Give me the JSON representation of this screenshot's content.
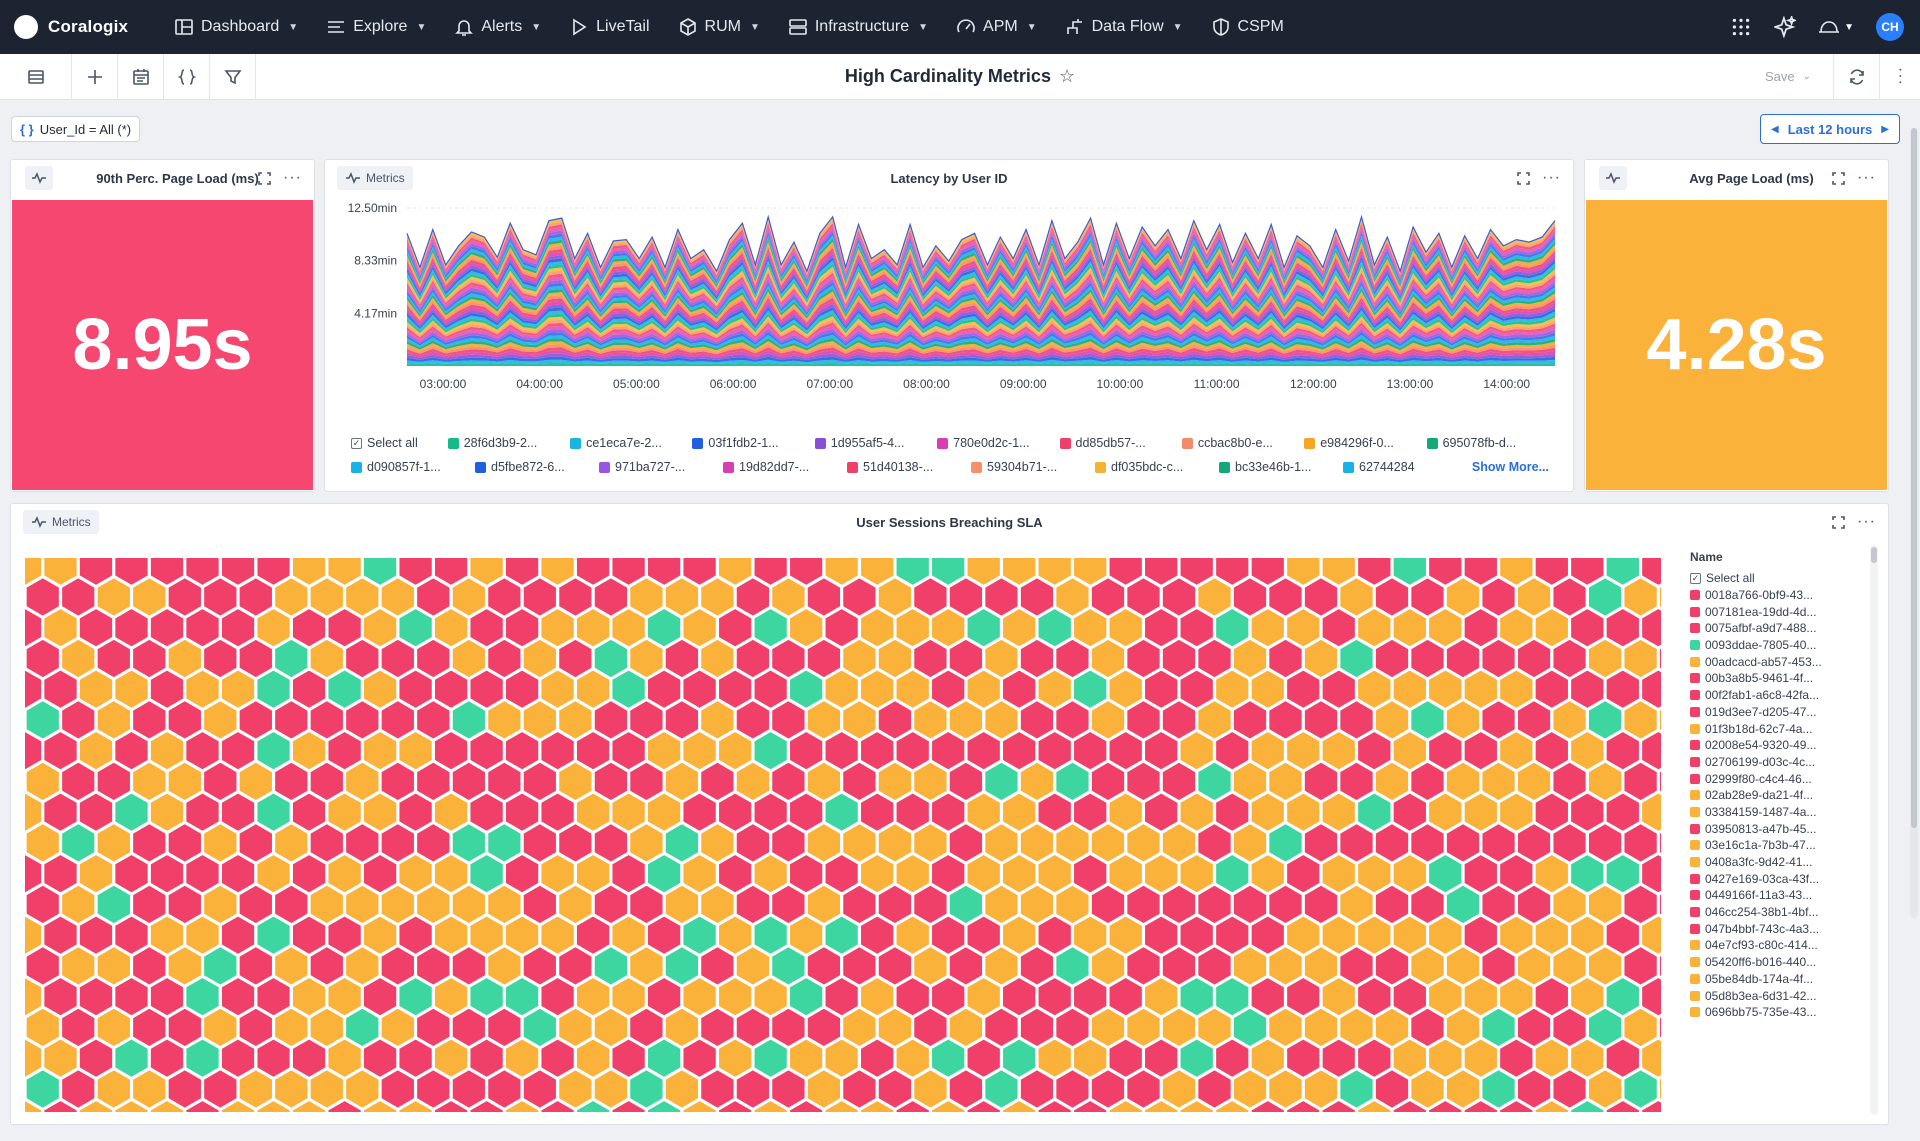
{
  "nav": {
    "brand": "Coralogix",
    "items": [
      {
        "label": "Dashboard",
        "icon": "dashboard-icon",
        "caret": true
      },
      {
        "label": "Explore",
        "icon": "explore-icon",
        "caret": true
      },
      {
        "label": "Alerts",
        "icon": "bell-icon",
        "caret": true
      },
      {
        "label": "LiveTail",
        "icon": "play-icon",
        "caret": false
      },
      {
        "label": "RUM",
        "icon": "rum-icon",
        "caret": true
      },
      {
        "label": "Infrastructure",
        "icon": "server-icon",
        "caret": true
      },
      {
        "label": "APM",
        "icon": "gauge-icon",
        "caret": true
      },
      {
        "label": "Data Flow",
        "icon": "dataflow-icon",
        "caret": true
      },
      {
        "label": "CSPM",
        "icon": "shield-icon",
        "caret": false
      }
    ],
    "avatar": "CH"
  },
  "toolbar": {
    "title": "High Cardinality Metrics",
    "save_label": "Save"
  },
  "filter": {
    "label": "User_Id = All (*)"
  },
  "time_range": {
    "label": "Last 12 hours"
  },
  "panels": {
    "p90": {
      "title": "90th Perc. Page Load (ms)",
      "value": "8.95s",
      "color": "#f5476f"
    },
    "latency": {
      "title": "Latency by User ID",
      "badge": "Metrics",
      "select_all": "Select all",
      "show_more": "Show More...",
      "legend": [
        {
          "name": "28f6d3b9-2...",
          "color": "#16b98a"
        },
        {
          "name": "ce1eca7e-2...",
          "color": "#19b5e0"
        },
        {
          "name": "03f1fdb2-1...",
          "color": "#1f5fe0"
        },
        {
          "name": "1d955af5-4...",
          "color": "#8a4fd8"
        },
        {
          "name": "780e0d2c-1...",
          "color": "#d63fb3"
        },
        {
          "name": "dd85db57-...",
          "color": "#f0406a"
        },
        {
          "name": "ccbac8b0-e...",
          "color": "#f58a6a"
        },
        {
          "name": "e984296f-0...",
          "color": "#f5a623"
        },
        {
          "name": "695078fb-d...",
          "color": "#12a878"
        },
        {
          "name": "d090857f-1...",
          "color": "#1ab0e8"
        },
        {
          "name": "d5fbe872-6...",
          "color": "#1f5fe0"
        },
        {
          "name": "971ba727-...",
          "color": "#9a55e0"
        },
        {
          "name": "19d82dd7-...",
          "color": "#d63fb3"
        },
        {
          "name": "51d40138-...",
          "color": "#f0406a"
        },
        {
          "name": "59304b71-...",
          "color": "#f5906a"
        },
        {
          "name": "df035bdc-c...",
          "color": "#f5b335"
        },
        {
          "name": "bc33e46b-1...",
          "color": "#12a878"
        },
        {
          "name": "62744284",
          "color": "#1ab0e8"
        }
      ]
    },
    "avg": {
      "title": "Avg Page Load (ms)",
      "value": "4.28s",
      "color": "#fbb23a"
    },
    "sla": {
      "title": "User Sessions Breaching SLA",
      "badge": "Metrics",
      "legend_header": "Name",
      "select_all": "Select all",
      "names": [
        {
          "name": "0018a766-0bf9-43...",
          "color": "#f0406a"
        },
        {
          "name": "007181ea-19dd-4d...",
          "color": "#f0406a"
        },
        {
          "name": "0075afbf-a9d7-488...",
          "color": "#f0406a"
        },
        {
          "name": "0093ddae-7805-40...",
          "color": "#3dd6a0"
        },
        {
          "name": "00adcacd-ab57-453...",
          "color": "#fbb23a"
        },
        {
          "name": "00b3a8b5-9461-4f...",
          "color": "#f0406a"
        },
        {
          "name": "00f2fab1-a6c8-42fa...",
          "color": "#f0406a"
        },
        {
          "name": "019d3ee7-d205-47...",
          "color": "#f0406a"
        },
        {
          "name": "01f3b18d-62c7-4a...",
          "color": "#fbb23a"
        },
        {
          "name": "02008e54-9320-49...",
          "color": "#f0406a"
        },
        {
          "name": "02706199-d03c-4c...",
          "color": "#f0406a"
        },
        {
          "name": "02999f80-c4c4-46...",
          "color": "#f0406a"
        },
        {
          "name": "02ab28e9-da21-4f...",
          "color": "#fbb23a"
        },
        {
          "name": "03384159-1487-4a...",
          "color": "#fbb23a"
        },
        {
          "name": "03950813-a47b-45...",
          "color": "#f0406a"
        },
        {
          "name": "03e16c1a-7b3b-47...",
          "color": "#fbb23a"
        },
        {
          "name": "0408a3fc-9d42-41...",
          "color": "#fbb23a"
        },
        {
          "name": "0427e169-03ca-43f...",
          "color": "#f0406a"
        },
        {
          "name": "0449166f-11a3-43...",
          "color": "#f0406a"
        },
        {
          "name": "046cc254-38b1-4bf...",
          "color": "#f0406a"
        },
        {
          "name": "047b4bbf-743c-4a3...",
          "color": "#f0406a"
        },
        {
          "name": "04e7cf93-c80c-414...",
          "color": "#fbb23a"
        },
        {
          "name": "05420ff6-b016-440...",
          "color": "#fbb23a"
        },
        {
          "name": "05be84db-174a-4f...",
          "color": "#fbb23a"
        },
        {
          "name": "05d8b3ea-6d31-42...",
          "color": "#fbb23a"
        },
        {
          "name": "0696bb75-735e-43...",
          "color": "#fbb23a"
        }
      ]
    }
  },
  "chart_data": {
    "type": "area",
    "title": "Latency by User ID",
    "stacked": true,
    "y_ticks": [
      "4.17min",
      "8.33min",
      "12.50min"
    ],
    "x_ticks": [
      "03:00:00",
      "04:00:00",
      "05:00:00",
      "06:00:00",
      "07:00:00",
      "08:00:00",
      "09:00:00",
      "10:00:00",
      "11:00:00",
      "12:00:00",
      "13:00:00",
      "14:00:00"
    ],
    "ylim_minutes": [
      0,
      12.5
    ],
    "total_series_minutes": [
      10.5,
      7.8,
      10.8,
      8,
      9.5,
      10.6,
      10.2,
      8.6,
      11.3,
      9.2,
      8.8,
      11.5,
      11.7,
      8.5,
      10.5,
      7.8,
      9.9,
      10,
      8.5,
      10.2,
      7.8,
      10.8,
      8.5,
      9.2,
      7.5,
      10,
      11.3,
      8,
      11.8,
      8,
      9.8,
      7.5,
      10.5,
      11.8,
      7.8,
      11.2,
      8.5,
      9.2,
      8,
      11.2,
      7.8,
      9.5,
      8.3,
      10,
      10.5,
      8,
      10.2,
      8.5,
      10.8,
      8,
      11.5,
      8.5,
      9.8,
      11.7,
      8,
      11.3,
      8.5,
      11,
      9.5,
      10.8,
      8.5,
      11.5,
      9.2,
      11.2,
      8.2,
      10.5,
      8.5,
      11.2,
      7.8,
      10.3,
      9.5,
      7.8,
      10.8,
      8.3,
      11.8,
      8,
      10.2,
      7.5,
      11,
      9,
      10.5,
      7.8,
      10.3,
      8.5,
      10.8,
      9.5,
      10,
      9.8,
      10.2,
      11.5
    ],
    "legend_position": "bottom",
    "grid": false
  }
}
